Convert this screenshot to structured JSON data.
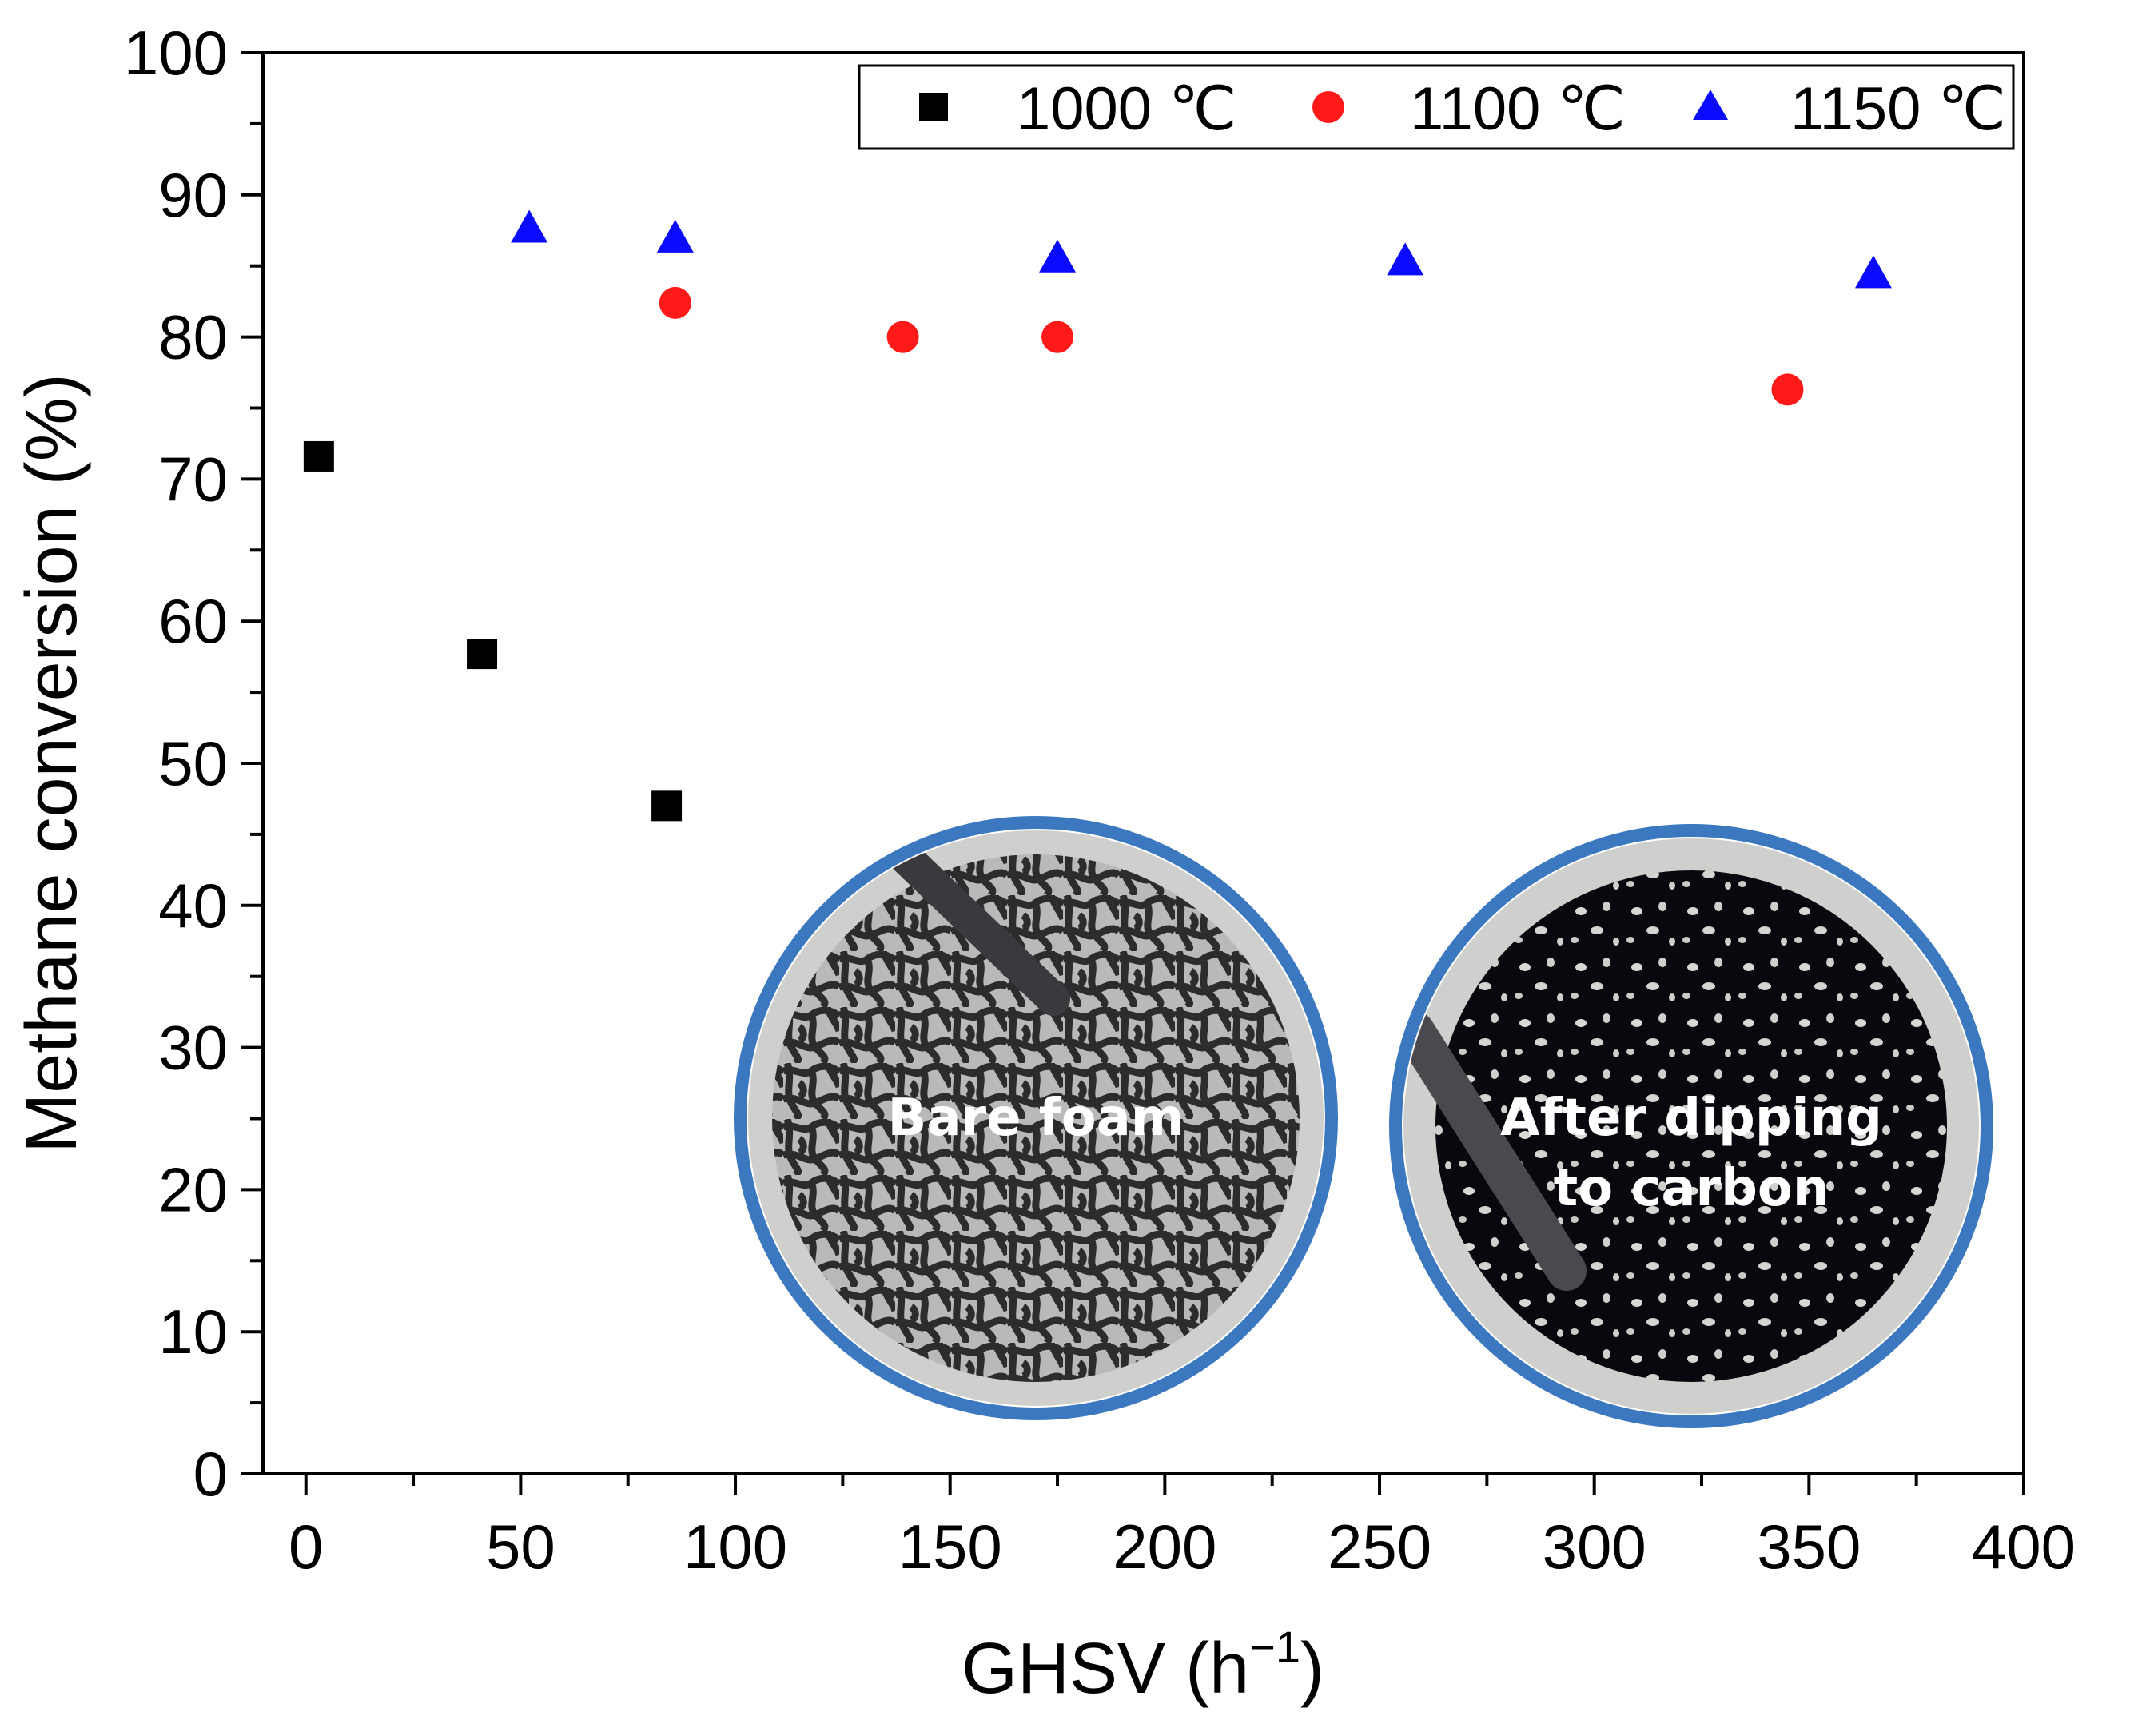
{
  "chart_data": {
    "type": "scatter",
    "title": "",
    "xlabel": "GHSV (h",
    "xlabel_sup": "−1",
    "xlabel_end": ")",
    "ylabel": "Methane conversion (%)",
    "xlim": [
      -10,
      400
    ],
    "ylim": [
      0,
      100
    ],
    "xticks": [
      0,
      50,
      100,
      150,
      200,
      250,
      300,
      350,
      400
    ],
    "yticks": [
      0,
      10,
      20,
      30,
      40,
      50,
      60,
      70,
      80,
      90,
      100
    ],
    "legend_position": "top-right",
    "grid": false,
    "series": [
      {
        "name": "1000 ℃",
        "marker": "square",
        "color": "#000000",
        "points": [
          [
            3,
            71.6
          ],
          [
            41,
            57.7
          ],
          [
            84,
            47.0
          ]
        ]
      },
      {
        "name": "1100 ℃",
        "marker": "circle",
        "color": "#ff1a1a",
        "points": [
          [
            86,
            82.4
          ],
          [
            139,
            80.0
          ],
          [
            175,
            80.0
          ],
          [
            345,
            76.3
          ]
        ]
      },
      {
        "name": "1150 ℃",
        "marker": "triangle",
        "color": "#0a0aff",
        "points": [
          [
            52,
            87.6
          ],
          [
            86,
            86.9
          ],
          [
            175,
            85.5
          ],
          [
            256,
            85.3
          ],
          [
            365,
            84.4
          ]
        ]
      }
    ],
    "insets": [
      {
        "label_lines": [
          "Bare foam"
        ]
      },
      {
        "label_lines": [
          "After dipping",
          "to carbon"
        ]
      }
    ]
  }
}
